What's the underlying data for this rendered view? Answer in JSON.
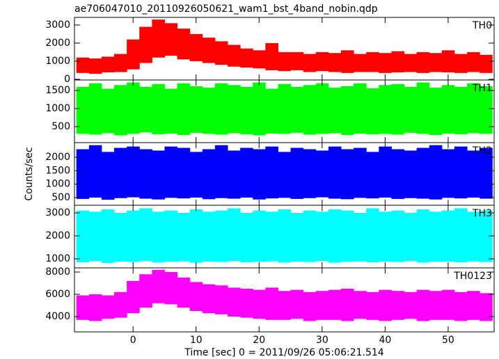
{
  "chart_data": [
    {
      "type": "range",
      "title": "ae706047010_20110926050621_wam1_bst_4band_nobin.qdp",
      "label": "TH0",
      "color": "#ff0000",
      "x": [
        -8,
        -6,
        -4,
        -2,
        0,
        2,
        4,
        6,
        8,
        10,
        12,
        14,
        16,
        18,
        20,
        22,
        24,
        26,
        28,
        30,
        32,
        34,
        36,
        38,
        40,
        42,
        44,
        46,
        48,
        50,
        52,
        54,
        56
      ],
      "low": [
        350,
        300,
        380,
        400,
        550,
        900,
        1200,
        1300,
        1100,
        1000,
        900,
        800,
        700,
        650,
        600,
        500,
        450,
        500,
        400,
        450,
        400,
        350,
        400,
        400,
        350,
        380,
        400,
        350,
        400,
        380,
        350,
        400,
        350
      ],
      "high": [
        1200,
        1150,
        1250,
        1400,
        2200,
        2900,
        3300,
        3100,
        2800,
        2500,
        2300,
        2100,
        1900,
        1700,
        1600,
        2000,
        1500,
        1500,
        1400,
        1500,
        1450,
        1600,
        1400,
        1500,
        1450,
        1550,
        1400,
        1500,
        1450,
        1600,
        1400,
        1500,
        1350
      ],
      "xlim": [
        -9.3,
        57.3
      ],
      "xticks": [
        0,
        10,
        20,
        30,
        40,
        50
      ],
      "ylim": [
        -40,
        3420
      ],
      "yticks": [
        0,
        1000,
        2000,
        3000
      ]
    },
    {
      "type": "range",
      "label": "TH1",
      "color": "#00ff00",
      "x": [
        -8,
        -6,
        -4,
        -2,
        0,
        2,
        4,
        6,
        8,
        10,
        12,
        14,
        16,
        18,
        20,
        22,
        24,
        26,
        28,
        30,
        32,
        34,
        36,
        38,
        40,
        42,
        44,
        46,
        48,
        50,
        52,
        54,
        56
      ],
      "low": [
        300,
        280,
        320,
        260,
        300,
        340,
        290,
        310,
        270,
        330,
        300,
        280,
        320,
        290,
        260,
        310,
        300,
        330,
        280,
        300,
        320,
        270,
        310,
        290,
        300,
        280,
        330,
        300,
        270,
        310,
        290,
        320,
        300
      ],
      "high": [
        1600,
        1700,
        1550,
        1650,
        1720,
        1600,
        1680,
        1550,
        1700,
        1620,
        1580,
        1700,
        1650,
        1600,
        1720,
        1550,
        1680,
        1600,
        1650,
        1700,
        1580,
        1620,
        1700,
        1560,
        1650,
        1680,
        1600,
        1720,
        1580,
        1650,
        1600,
        1700,
        1620
      ],
      "xlim": [
        -9.3,
        57.3
      ],
      "xticks": [
        0,
        10,
        20,
        30,
        40,
        50
      ],
      "ylim": [
        58,
        1790
      ],
      "yticks": [
        500,
        1000,
        1500
      ]
    },
    {
      "type": "range",
      "label": "TH2",
      "color": "#0000ff",
      "ylabel": "Counts/sec",
      "x": [
        -8,
        -6,
        -4,
        -2,
        0,
        2,
        4,
        6,
        8,
        10,
        12,
        14,
        16,
        18,
        20,
        22,
        24,
        26,
        28,
        30,
        32,
        34,
        36,
        38,
        40,
        42,
        44,
        46,
        48,
        50,
        52,
        54,
        56
      ],
      "low": [
        450,
        500,
        420,
        480,
        510,
        460,
        430,
        490,
        470,
        500,
        440,
        480,
        460,
        500,
        430,
        470,
        490,
        450,
        480,
        510,
        460,
        440,
        490,
        470,
        500,
        450,
        480,
        460,
        430,
        490,
        470,
        500,
        460
      ],
      "high": [
        2300,
        2450,
        2200,
        2350,
        2400,
        2300,
        2250,
        2400,
        2350,
        2200,
        2300,
        2450,
        2250,
        2350,
        2300,
        2400,
        2200,
        2350,
        2300,
        2250,
        2400,
        2300,
        2350,
        2200,
        2400,
        2300,
        2250,
        2350,
        2450,
        2300,
        2400,
        2250,
        2350
      ],
      "xlim": [
        -9.3,
        57.3
      ],
      "xticks": [
        0,
        10,
        20,
        30,
        40,
        50
      ],
      "ylim": [
        215,
        2545
      ],
      "yticks": [
        500,
        1000,
        1500,
        2000
      ]
    },
    {
      "type": "range",
      "label": "TH3",
      "color": "#00ffff",
      "x": [
        -8,
        -6,
        -4,
        -2,
        0,
        2,
        4,
        6,
        8,
        10,
        12,
        14,
        16,
        18,
        20,
        22,
        24,
        26,
        28,
        30,
        32,
        34,
        36,
        38,
        40,
        42,
        44,
        46,
        48,
        50,
        52,
        54,
        56
      ],
      "low": [
        850,
        900,
        820,
        880,
        860,
        900,
        840,
        870,
        890,
        830,
        880,
        860,
        900,
        850,
        870,
        890,
        840,
        880,
        860,
        900,
        830,
        870,
        890,
        850,
        880,
        860,
        900,
        840,
        870,
        880,
        850,
        890,
        860
      ],
      "high": [
        3100,
        3050,
        3150,
        3000,
        3100,
        3200,
        3050,
        3100,
        3000,
        3150,
        3050,
        3100,
        3200,
        3000,
        3100,
        3050,
        3150,
        3000,
        3100,
        3050,
        3150,
        3100,
        3000,
        3200,
        3050,
        3100,
        3000,
        3150,
        3050,
        3100,
        3200,
        3050,
        3100
      ],
      "xlim": [
        -9.3,
        57.3
      ],
      "xticks": [
        0,
        10,
        20,
        30,
        40,
        50
      ],
      "ylim": [
        606,
        3333
      ],
      "yticks": [
        1000,
        2000,
        3000
      ]
    },
    {
      "type": "range",
      "label": "TH0123",
      "color": "#ff00ff",
      "xlabel": "Time [sec] 0 = 2011/09/26 05:06:21.514",
      "x": [
        -8,
        -6,
        -4,
        -2,
        0,
        2,
        4,
        6,
        8,
        10,
        12,
        14,
        16,
        18,
        20,
        22,
        24,
        26,
        28,
        30,
        32,
        34,
        36,
        38,
        40,
        42,
        44,
        46,
        48,
        50,
        52,
        54,
        56
      ],
      "low": [
        3700,
        3600,
        3800,
        3900,
        4300,
        4800,
        5200,
        5100,
        4800,
        4500,
        4300,
        4200,
        4000,
        3900,
        3800,
        3700,
        3700,
        3800,
        3600,
        3700,
        3700,
        3600,
        3800,
        3700,
        3600,
        3700,
        3800,
        3600,
        3700,
        3700,
        3600,
        3700,
        3600
      ],
      "high": [
        5900,
        6000,
        5900,
        6200,
        7200,
        7800,
        8200,
        8000,
        7500,
        7100,
        6900,
        6800,
        6600,
        6500,
        6400,
        6600,
        6300,
        6400,
        6200,
        6300,
        6400,
        6500,
        6300,
        6200,
        6400,
        6300,
        6200,
        6400,
        6300,
        6400,
        6200,
        6300,
        6100
      ],
      "xlim": [
        -9.3,
        57.3
      ],
      "xticks": [
        0,
        10,
        20,
        30,
        40,
        50
      ],
      "ylim": [
        2625,
        8375
      ],
      "yticks": [
        4000,
        6000,
        8000
      ]
    }
  ]
}
